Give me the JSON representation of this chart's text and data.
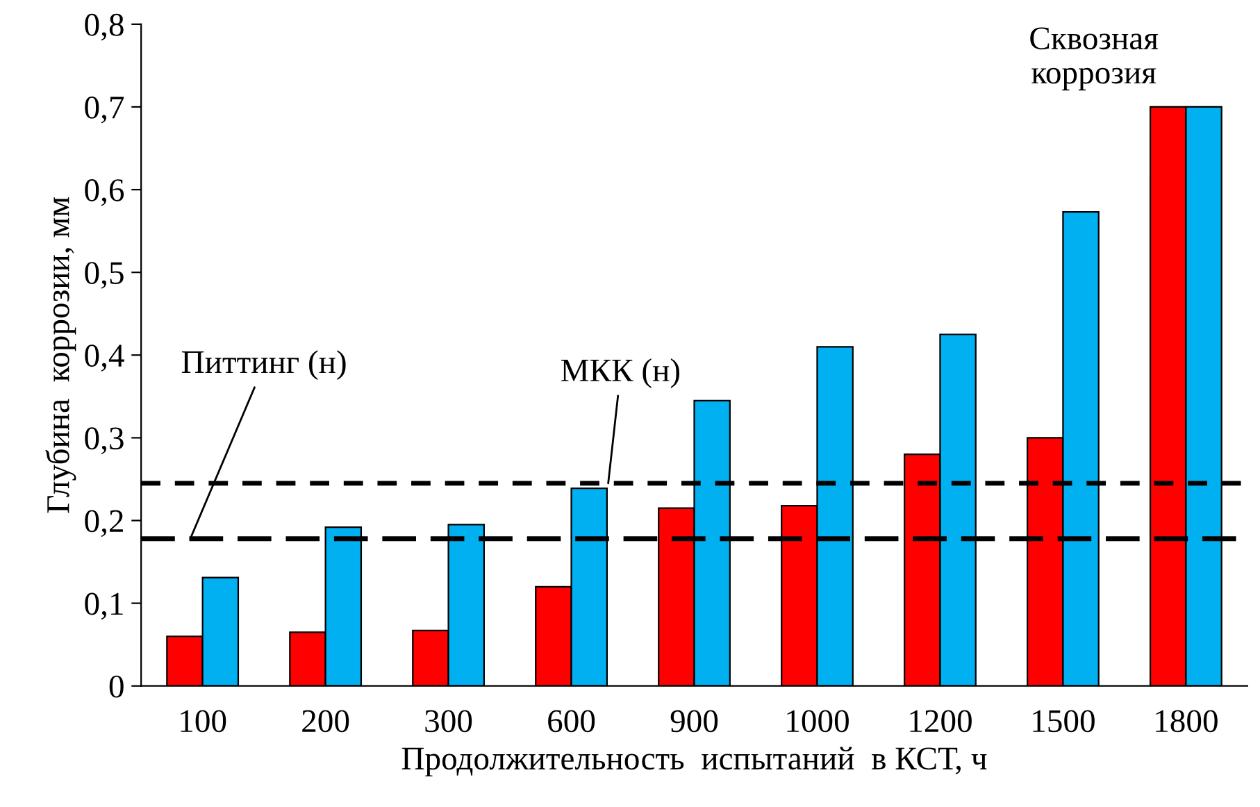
{
  "chart_data": {
    "type": "bar",
    "xlabel": "Продолжительность  испытаний  в КСТ, ч",
    "ylabel": "Глубина  коррозии, мм",
    "categories": [
      "100",
      "200",
      "300",
      "600",
      "900",
      "1000",
      "1200",
      "1500",
      "1800"
    ],
    "series": [
      {
        "color": "#ff0000",
        "values": [
          0.06,
          0.065,
          0.067,
          0.12,
          0.215,
          0.218,
          0.28,
          0.3,
          0.7
        ]
      },
      {
        "color": "#00b0f0",
        "values": [
          0.131,
          0.192,
          0.195,
          0.239,
          0.345,
          0.41,
          0.425,
          0.573,
          0.7
        ]
      }
    ],
    "ylim": [
      0,
      0.8
    ],
    "yticks": [
      0,
      {
        "value": 0.1,
        "label": "0,1"
      },
      {
        "value": 0.2,
        "label": "0,2"
      },
      {
        "value": 0.3,
        "label": "0,3"
      },
      {
        "value": 0.4,
        "label": "0,4"
      },
      {
        "value": 0.5,
        "label": "0,5"
      },
      {
        "value": 0.6,
        "label": "0,6"
      },
      {
        "value": 0.7,
        "label": "0,7"
      },
      {
        "value": 0.8,
        "label": "0,8"
      }
    ],
    "ref_lines": [
      {
        "axis": "y",
        "value": 0.178,
        "label": "Питтинг (н)",
        "color": "#000000",
        "line_style": "dashed"
      },
      {
        "axis": "y",
        "value": 0.245,
        "label": "МКК (н)",
        "color": "#000000",
        "line_style": "dotted"
      }
    ],
    "annotations": [
      {
        "text": "Сквозная\nкоррозия",
        "x": "1800",
        "y": 0.7
      }
    ],
    "grid": false
  }
}
